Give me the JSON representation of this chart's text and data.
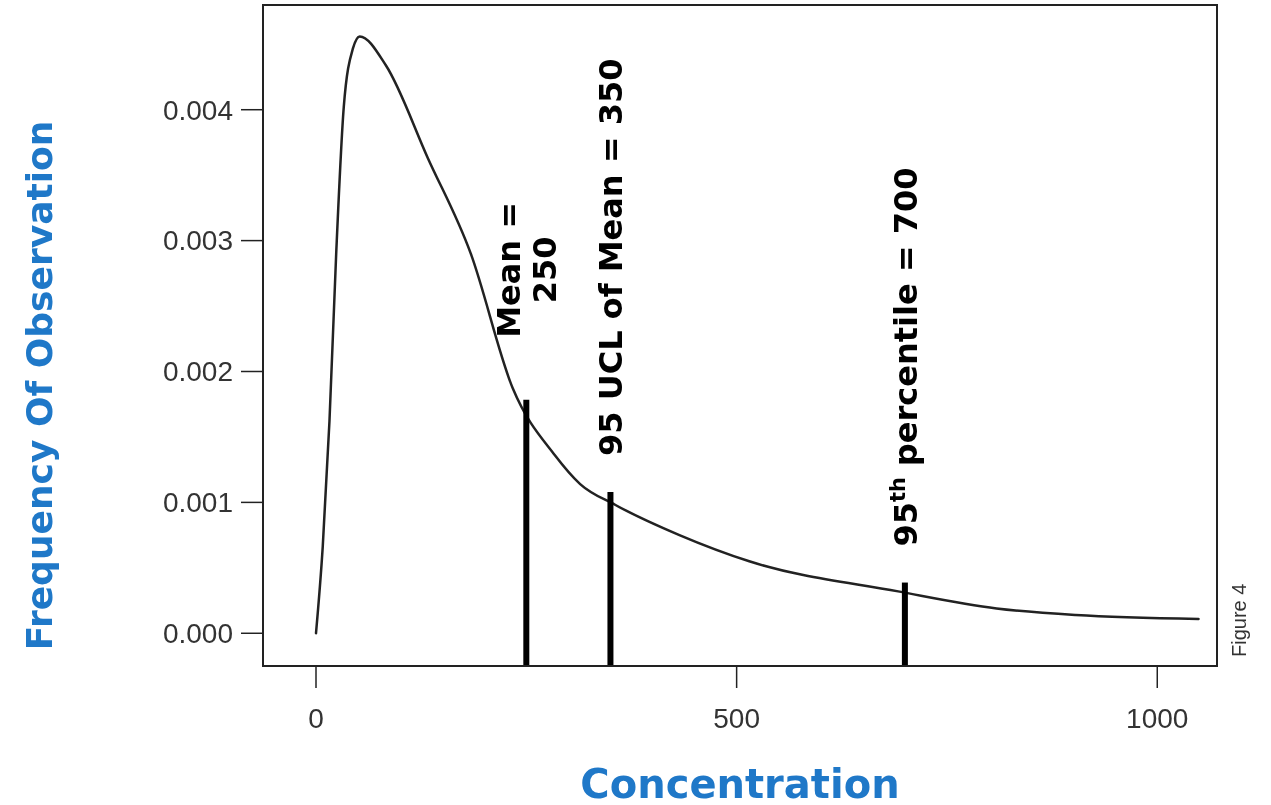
{
  "chart_data": {
    "type": "line",
    "xlabel": "Concentration",
    "ylabel": "Frequency Of Observation",
    "series": [
      {
        "color": "#222222",
        "x": [
          0,
          8,
          16,
          24,
          33,
          44,
          52,
          83,
          133,
          184,
          234,
          284,
          314,
          356,
          432,
          515,
          692,
          809,
          903,
          1049
        ],
        "values": [
          0,
          0.00066,
          0.00162,
          0.0029,
          0.00402,
          0.00447,
          0.00456,
          0.00434,
          0.00363,
          0.0029,
          0.00187,
          0.00136,
          0.00114,
          0.00098,
          0.00075,
          0.00055,
          0.00032,
          0.00019,
          0.00014,
          0.00011
        ]
      }
    ],
    "xlim": [
      -63,
      1071
    ],
    "xticks": [
      0,
      500,
      1000
    ],
    "ylim": [
      -0.00025,
      0.0048
    ],
    "yticks": [
      {
        "value": 0,
        "label": "0.000"
      },
      {
        "value": 0.001,
        "label": "0.001"
      },
      {
        "value": 0.002,
        "label": "0.002"
      },
      {
        "value": 0.003,
        "label": "0.003"
      },
      {
        "value": 0.004,
        "label": "0.004"
      }
    ],
    "ref_lines": [
      {
        "axis": "x",
        "value": 250,
        "label": "Mean =\n250",
        "color": "#000000"
      },
      {
        "axis": "x",
        "value": 350,
        "label": "95 UCL of Mean = 350",
        "color": "#000000"
      },
      {
        "axis": "x",
        "value": 700,
        "label": "95$^{th}$ percentile = 700",
        "color": "#000000"
      }
    ],
    "annotations": [
      "Figure 4"
    ],
    "grid": false,
    "marker": "none",
    "line_style": "solid"
  }
}
